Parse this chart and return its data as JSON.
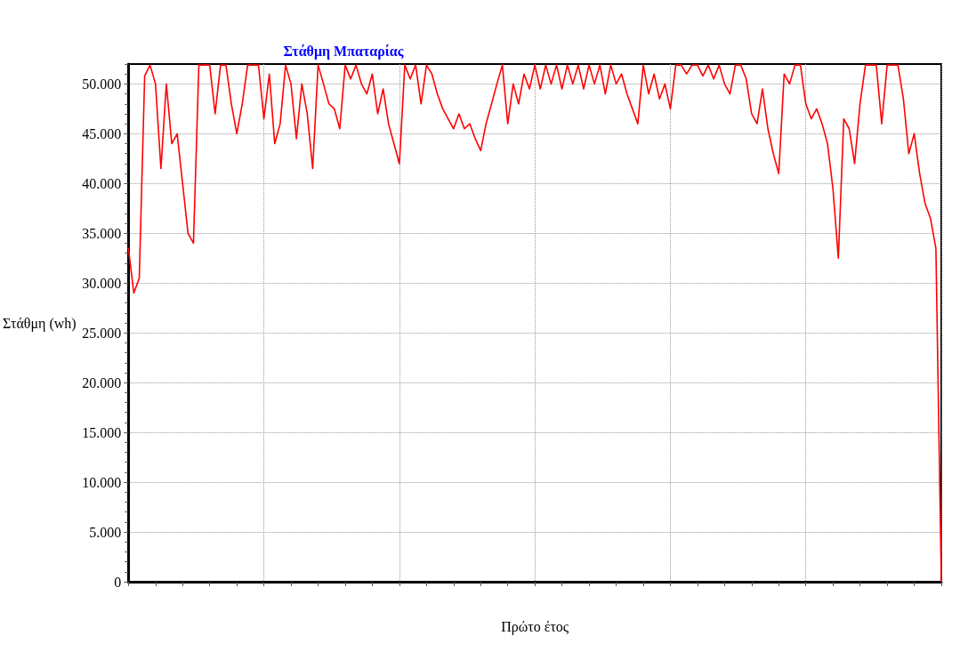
{
  "chart_data": {
    "type": "line",
    "title": "Στάθμη Μπαταρίας",
    "xlabel": "Πρώτο έτος",
    "ylabel": "Στάθμη (wh)",
    "categories": [
      null,
      null,
      null,
      null,
      null,
      null,
      null,
      null,
      null,
      null,
      null,
      null,
      null,
      null,
      null,
      null,
      null,
      null,
      null,
      null,
      null,
      null,
      null,
      null,
      null,
      null,
      null,
      null,
      null,
      null,
      null,
      null,
      null,
      null,
      null,
      null,
      null,
      null,
      null,
      null,
      null,
      null,
      null,
      null,
      null,
      null,
      null,
      null,
      null,
      null,
      null,
      null,
      null,
      null,
      null,
      null,
      null,
      null,
      null,
      null,
      null,
      null,
      null,
      null,
      null,
      null,
      null,
      null,
      null,
      null,
      null,
      null,
      null,
      null,
      null,
      null,
      null,
      null,
      null,
      null,
      null,
      null,
      null,
      null,
      null,
      null,
      null,
      null,
      null,
      null,
      null,
      null,
      null,
      null,
      null,
      null,
      null,
      null,
      null,
      null,
      null,
      null,
      null,
      null,
      null,
      null,
      null,
      null,
      null,
      null,
      null,
      null,
      null,
      null,
      null,
      null,
      null,
      null,
      null,
      null,
      null,
      null,
      null,
      null,
      null,
      null,
      null,
      null,
      null,
      null,
      null,
      null,
      null,
      null,
      null,
      null,
      null,
      null,
      null,
      null,
      null,
      null,
      null,
      null,
      null,
      null,
      null,
      null,
      null,
      null,
      null
    ],
    "values": [
      33500,
      29000,
      30500,
      50800,
      51900,
      50000,
      41500,
      50000,
      44000,
      45000,
      40000,
      35000,
      34000,
      51900,
      51900,
      51900,
      47000,
      51900,
      51900,
      48000,
      45000,
      48000,
      51900,
      51900,
      51900,
      46500,
      51000,
      44000,
      46000,
      51900,
      50000,
      44500,
      50000,
      47000,
      41500,
      51900,
      50000,
      48000,
      47500,
      45500,
      51900,
      50500,
      51900,
      50000,
      49000,
      51000,
      47000,
      49500,
      46000,
      44000,
      42000,
      51900,
      50500,
      51900,
      48000,
      51900,
      51000,
      49000,
      47500,
      46500,
      45500,
      47000,
      45500,
      46000,
      44500,
      43300,
      46000,
      48000,
      50000,
      51900,
      46000,
      50000,
      48000,
      51000,
      49500,
      51900,
      49500,
      51900,
      50000,
      51900,
      49500,
      51900,
      50000,
      51900,
      49500,
      51900,
      50000,
      51900,
      49000,
      51900,
      50000,
      51000,
      49000,
      47500,
      46000,
      51900,
      49000,
      51000,
      48500,
      50000,
      47500,
      51900,
      51900,
      51000,
      51900,
      51900,
      50800,
      51900,
      50500,
      51900,
      50000,
      49000,
      51900,
      51900,
      50500,
      47000,
      46000,
      49500,
      45500,
      43000,
      41000,
      51000,
      50000,
      51900,
      51900,
      48000,
      46500,
      47500,
      46000,
      44000,
      39500,
      32500,
      46500,
      45500,
      42000,
      48000,
      51900,
      51900,
      51900,
      46000,
      51900,
      51900,
      51900,
      48500,
      43000,
      45000,
      41000,
      38000,
      36500,
      33500,
      0
    ],
    "color": "#ff0000",
    "line_style": "solid",
    "ylim": [
      0,
      52000
    ],
    "yticks": [
      {
        "value": 0,
        "label": "0"
      },
      {
        "value": 1000,
        "label": null
      },
      {
        "value": 2000,
        "label": null
      },
      {
        "value": 3000,
        "label": null
      },
      {
        "value": 4000,
        "label": null
      },
      {
        "value": 5000,
        "label": "5.000"
      },
      {
        "value": 6000,
        "label": null
      },
      {
        "value": 7000,
        "label": null
      },
      {
        "value": 8000,
        "label": null
      },
      {
        "value": 9000,
        "label": null
      },
      {
        "value": 10000,
        "label": "10.000"
      },
      {
        "value": 11000,
        "label": null
      },
      {
        "value": 12000,
        "label": null
      },
      {
        "value": 13000,
        "label": null
      },
      {
        "value": 14000,
        "label": null
      },
      {
        "value": 15000,
        "label": "15.000"
      },
      {
        "value": 16000,
        "label": null
      },
      {
        "value": 17000,
        "label": null
      },
      {
        "value": 18000,
        "label": null
      },
      {
        "value": 19000,
        "label": null
      },
      {
        "value": 20000,
        "label": "20.000"
      },
      {
        "value": 21000,
        "label": null
      },
      {
        "value": 22000,
        "label": null
      },
      {
        "value": 23000,
        "label": null
      },
      {
        "value": 24000,
        "label": null
      },
      {
        "value": 25000,
        "label": "25.000"
      },
      {
        "value": 26000,
        "label": null
      },
      {
        "value": 27000,
        "label": null
      },
      {
        "value": 28000,
        "label": null
      },
      {
        "value": 29000,
        "label": null
      },
      {
        "value": 30000,
        "label": "30.000"
      },
      {
        "value": 31000,
        "label": null
      },
      {
        "value": 32000,
        "label": null
      },
      {
        "value": 33000,
        "label": null
      },
      {
        "value": 34000,
        "label": null
      },
      {
        "value": 35000,
        "label": "35.000"
      },
      {
        "value": 36000,
        "label": null
      },
      {
        "value": 37000,
        "label": null
      },
      {
        "value": 38000,
        "label": null
      },
      {
        "value": 39000,
        "label": null
      },
      {
        "value": 40000,
        "label": "40.000"
      },
      {
        "value": 41000,
        "label": null
      },
      {
        "value": 42000,
        "label": null
      },
      {
        "value": 43000,
        "label": null
      },
      {
        "value": 44000,
        "label": null
      },
      {
        "value": 45000,
        "label": "45.000"
      },
      {
        "value": 46000,
        "label": null
      },
      {
        "value": 47000,
        "label": null
      },
      {
        "value": 48000,
        "label": null
      },
      {
        "value": 49000,
        "label": null
      },
      {
        "value": 50000,
        "label": "50.000"
      },
      {
        "value": 51000,
        "label": null
      },
      {
        "value": 52000,
        "label": null
      }
    ],
    "grid": true,
    "tick_labels": "y"
  }
}
